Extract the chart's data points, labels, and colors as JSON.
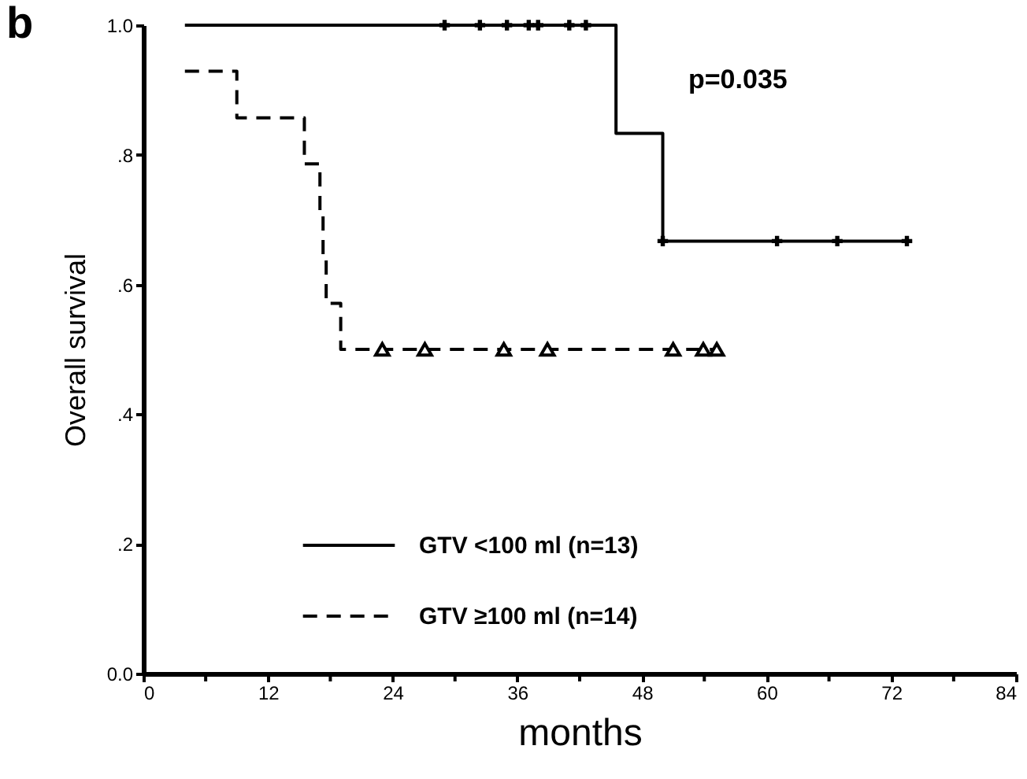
{
  "chart_data": {
    "type": "step",
    "title": "b",
    "xlabel": "months",
    "ylabel": "Overall survival",
    "annotations": [
      "p=0.035"
    ],
    "xlim": [
      0,
      84
    ],
    "xticks": [
      0,
      {
        "value": 6,
        "label": null
      },
      12,
      {
        "value": 18,
        "label": null
      },
      24,
      {
        "value": 30,
        "label": null
      },
      36,
      {
        "value": 42,
        "label": null
      },
      48,
      {
        "value": 54,
        "label": null
      },
      60,
      {
        "value": 66,
        "label": null
      },
      72,
      {
        "value": 78,
        "label": null
      },
      84
    ],
    "ylim": [
      0,
      1
    ],
    "yticks": [
      {
        "value": 0,
        "label": "0.0"
      },
      {
        "value": 0.2,
        "label": ".2"
      },
      {
        "value": 0.4,
        "label": ".4"
      },
      {
        "value": 0.6,
        "label": ".6"
      },
      {
        "value": 0.8,
        "label": ".8"
      },
      {
        "value": 1,
        "label": "1.0"
      }
    ],
    "grid": false,
    "legend": "bottom",
    "series": [
      {
        "name": "GTV <100 ml (n=13)",
        "color": "#000000",
        "line_style": "solid",
        "x": [
          4,
          45.5,
          50,
          74
        ],
        "values": [
          1,
          0.833,
          0.667,
          0.667
        ]
      },
      {
        "name": "GTV ≥100 ml (n=14)",
        "color": "#000000",
        "line_style": "dashed",
        "x": [
          4,
          9,
          15.5,
          17,
          17.3,
          17.6,
          19,
          55.5
        ],
        "values": [
          0.929,
          0.857,
          0.786,
          0.714,
          0.643,
          0.571,
          0.5,
          0.5
        ]
      },
      {
        "type": "scatter",
        "marker": "cross",
        "color": "#000000",
        "x": [
          29,
          32.4,
          35,
          37.1,
          38,
          41,
          42.6,
          50,
          61,
          66.8,
          73.5
        ],
        "values": [
          1,
          1,
          1,
          1,
          1,
          1,
          1,
          0.667,
          0.667,
          0.667,
          0.667
        ]
      },
      {
        "type": "scatter",
        "marker": "triangle",
        "color": "#000000",
        "x": [
          23,
          27.1,
          34.7,
          38.9,
          51,
          53.9,
          55.2
        ],
        "values": [
          0.5,
          0.5,
          0.5,
          0.5,
          0.5,
          0.5,
          0.5
        ]
      }
    ]
  }
}
